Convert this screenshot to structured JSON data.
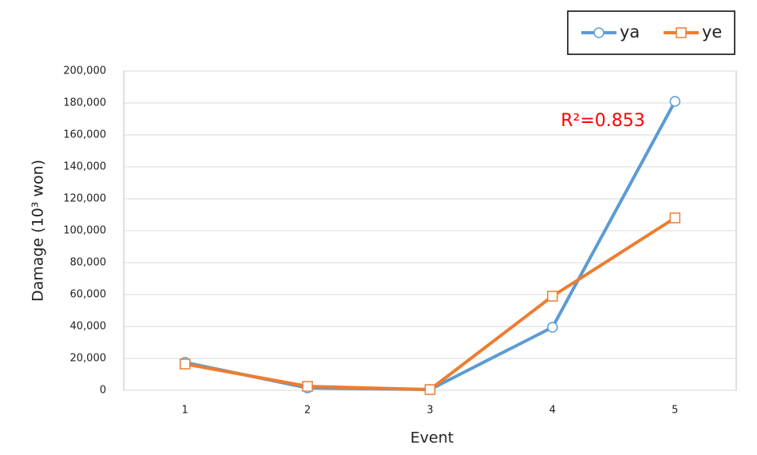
{
  "chart_data": {
    "type": "line",
    "x_label": "Event",
    "y_label": "Damage (10³ won)",
    "annotation": "R²=0.853",
    "categories": [
      "1",
      "2",
      "3",
      "4",
      "5"
    ],
    "series": [
      {
        "name": "ya",
        "color": "#5b9bd5",
        "marker": "circle",
        "values": [
          17500,
          1500,
          500,
          39500,
          181000
        ]
      },
      {
        "name": "ye",
        "color": "#ed7d31",
        "marker": "square",
        "values": [
          16500,
          2500,
          500,
          59000,
          108000
        ]
      }
    ],
    "ylim": [
      0,
      200000
    ],
    "yticks": [
      0,
      {
        "value": 20000,
        "label": "20,000"
      },
      {
        "value": 40000,
        "label": "40,000"
      },
      {
        "value": 60000,
        "label": "60,000"
      },
      {
        "value": 80000,
        "label": "80,000"
      },
      {
        "value": 100000,
        "label": "100,000"
      },
      {
        "value": 120000,
        "label": "120,000"
      },
      {
        "value": 140000,
        "label": "140,000"
      },
      {
        "value": 160000,
        "label": "160,000"
      },
      {
        "value": 180000,
        "label": "180,000"
      },
      {
        "value": 200000,
        "label": "200,000"
      }
    ],
    "grid": true,
    "legend": "top-right"
  }
}
